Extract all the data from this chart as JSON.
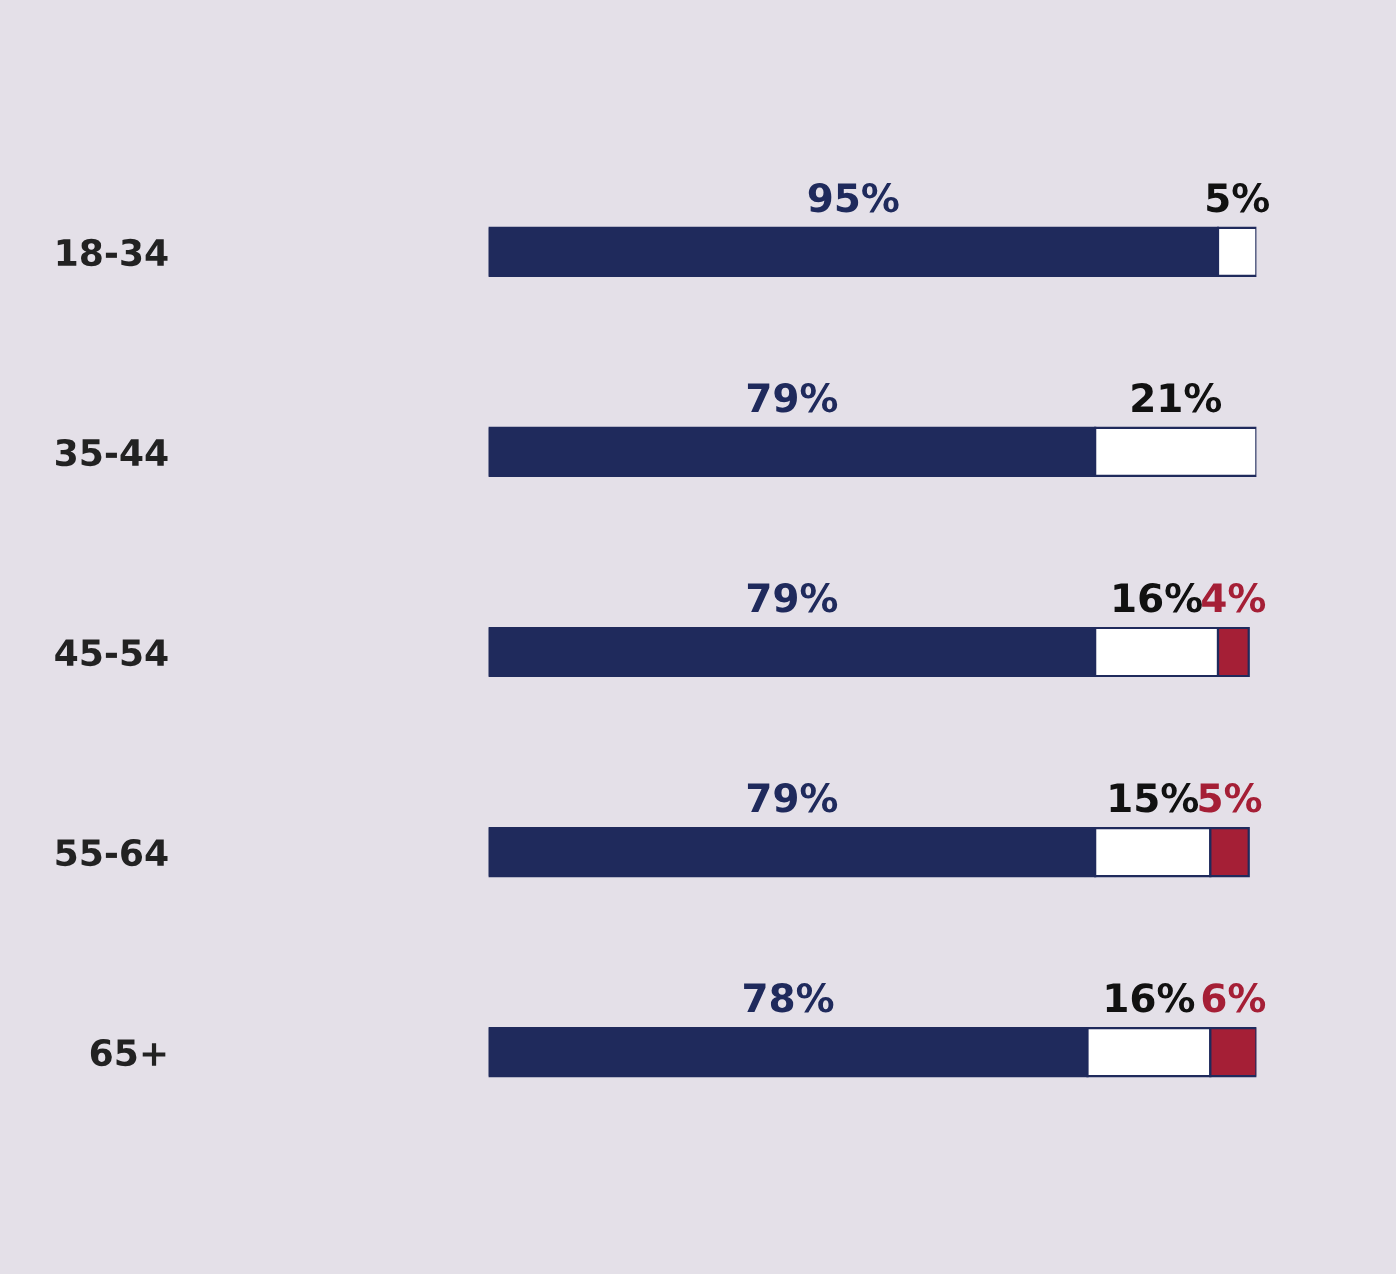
{
  "chart_data": {
    "type": "bar",
    "orientation": "horizontal",
    "stacked": true,
    "categories": [
      "18-34",
      "35-44",
      "45-54",
      "55-64",
      "65+"
    ],
    "series": [
      {
        "color": "#1f2a5c",
        "values": [
          95,
          79,
          79,
          79,
          78
        ],
        "value_labels": [
          "95%",
          "79%",
          "79%",
          "79%",
          "78%"
        ]
      },
      {
        "color": "#ffffff",
        "values": [
          5,
          21,
          16,
          15,
          16
        ],
        "value_labels": [
          "5%",
          "21%",
          "16%",
          "15%",
          "16%"
        ]
      },
      {
        "color": "#a51f36",
        "values": [
          null,
          null,
          4,
          5,
          6
        ],
        "value_labels": [
          null,
          null,
          "4%",
          "5%",
          "6%"
        ]
      }
    ]
  }
}
